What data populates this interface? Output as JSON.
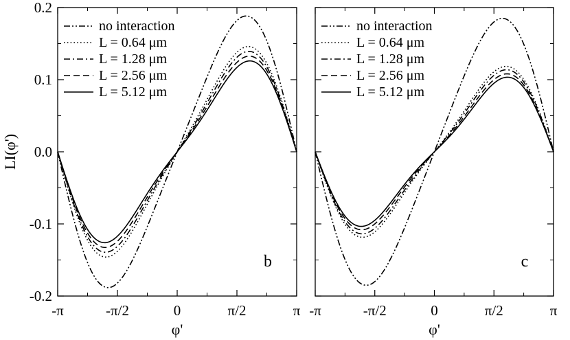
{
  "chart_data": [
    {
      "type": "line",
      "panel_label": "b",
      "ylabel": "LI(φ')",
      "xlabel": "φ'",
      "xlim": [
        -3.14159,
        3.14159
      ],
      "ylim": [
        -0.2,
        0.2
      ],
      "xticks": [
        {
          "value": -3.14159,
          "label": "-π"
        },
        {
          "value": -1.5708,
          "label": "-π/2"
        },
        {
          "value": 0,
          "label": "0"
        },
        {
          "value": 1.5708,
          "label": "π/2"
        },
        {
          "value": 3.14159,
          "label": "π"
        }
      ],
      "yticks": [
        {
          "value": -0.2,
          "label": "-0.2"
        },
        {
          "value": -0.1,
          "label": "-0.1"
        },
        {
          "value": 0.0,
          "label": "0.0"
        },
        {
          "value": 0.1,
          "label": "0.1"
        },
        {
          "value": 0.2,
          "label": "0.2"
        }
      ],
      "legend_position": "top-left",
      "curve_model": "A*sin(phi') - B*sin(2*phi')",
      "series": [
        {
          "name": "no interaction",
          "style": "dash-dot-dot",
          "amplitude": 0.182,
          "second_harmonic": 0.025
        },
        {
          "name": "L = 0.64 μm",
          "style": "dotted",
          "amplitude": 0.138,
          "second_harmonic": 0.025
        },
        {
          "name": "L = 1.28 μm",
          "style": "dash-dot",
          "amplitude": 0.131,
          "second_harmonic": 0.025
        },
        {
          "name": "L = 2.56 μm",
          "style": "dashed",
          "amplitude": 0.124,
          "second_harmonic": 0.025
        },
        {
          "name": "L = 5.12 μm",
          "style": "solid",
          "amplitude": 0.117,
          "second_harmonic": 0.025
        }
      ]
    },
    {
      "type": "line",
      "panel_label": "c",
      "ylabel": "",
      "xlabel": "φ'",
      "xlim": [
        -3.14159,
        3.14159
      ],
      "ylim": [
        -0.2,
        0.2
      ],
      "xticks": [
        {
          "value": -3.14159,
          "label": "-π"
        },
        {
          "value": -1.5708,
          "label": "-π/2"
        },
        {
          "value": 0,
          "label": "0"
        },
        {
          "value": 1.5708,
          "label": "π/2"
        },
        {
          "value": 3.14159,
          "label": "π"
        }
      ],
      "yticks": [],
      "legend_position": "top-left",
      "curve_model": "A*sin(phi') - B*sin(2*phi')",
      "series": [
        {
          "name": "no interaction",
          "style": "dash-dot-dot",
          "amplitude": 0.18,
          "second_harmonic": 0.022
        },
        {
          "name": "L = 0.64 μm",
          "style": "dotted",
          "amplitude": 0.111,
          "second_harmonic": 0.022
        },
        {
          "name": "L = 1.28 μm",
          "style": "dash-dot",
          "amplitude": 0.106,
          "second_harmonic": 0.022
        },
        {
          "name": "L = 2.56 μm",
          "style": "dashed",
          "amplitude": 0.1,
          "second_harmonic": 0.022
        },
        {
          "name": "L = 5.12 μm",
          "style": "solid",
          "amplitude": 0.095,
          "second_harmonic": 0.022
        }
      ]
    }
  ]
}
